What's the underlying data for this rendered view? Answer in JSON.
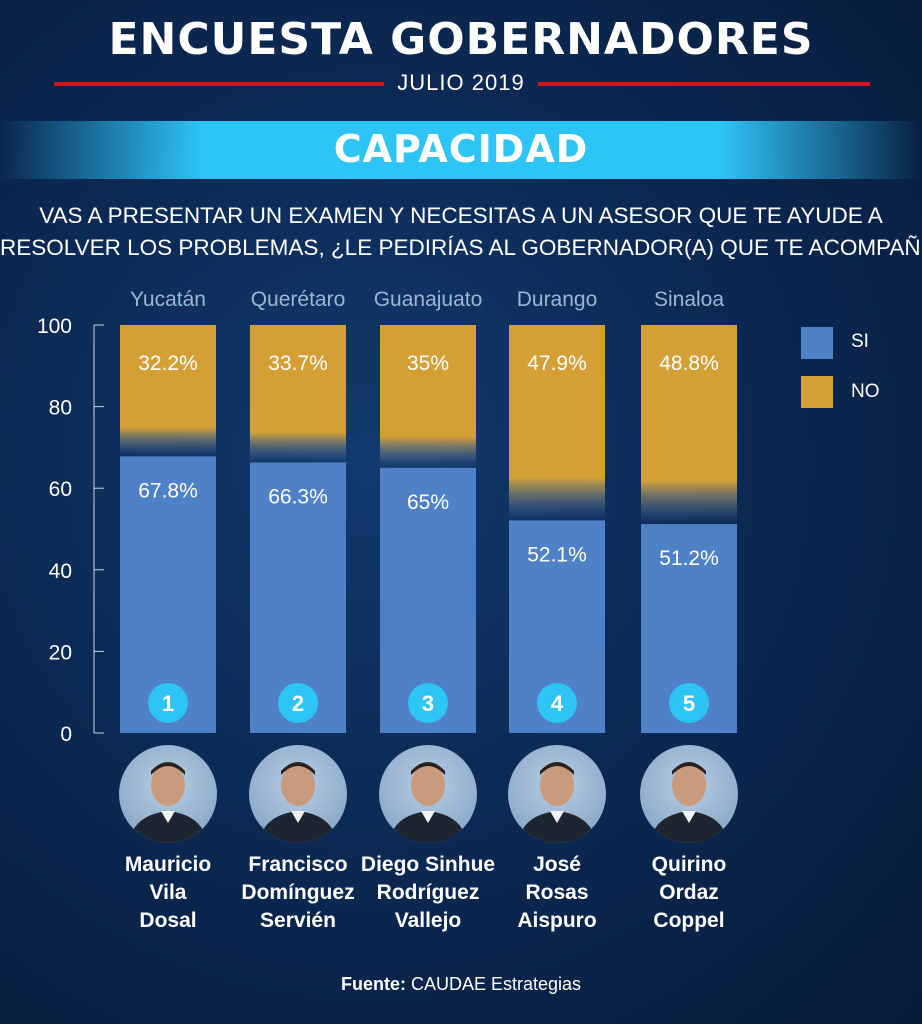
{
  "header": {
    "title": "ENCUESTA GOBERNADORES",
    "date": "JULIO 2019",
    "section": "CAPACIDAD",
    "question_line1": "VAS A PRESENTAR UN EXAMEN Y NECESITAS A UN ASESOR QUE TE AYUDE A",
    "question_line2": "RESOLVER LOS PROBLEMAS, ¿LE PEDIRÍAS AL GOBERNADOR(A) QUE TE ACOMPAÑE?"
  },
  "chart_data": {
    "type": "bar",
    "stacked": true,
    "categories": [
      "Yucatán",
      "Querétaro",
      "Guanajuato",
      "Durango",
      "Sinaloa"
    ],
    "series": [
      {
        "name": "SI",
        "values": [
          67.8,
          66.3,
          65,
          52.1,
          51.2
        ],
        "labels": [
          "67.8%",
          "66.3%",
          "65%",
          "52.1%",
          "51.2%"
        ],
        "color": "#4f81c7"
      },
      {
        "name": "NO",
        "values": [
          32.2,
          33.7,
          35,
          47.9,
          48.8
        ],
        "labels": [
          "32.2%",
          "33.7%",
          "35%",
          "47.9%",
          "48.8%"
        ],
        "color": "#d4a036"
      }
    ],
    "ranks": [
      "1",
      "2",
      "3",
      "4",
      "5"
    ],
    "y_ticks": [
      "0",
      "20",
      "40",
      "60",
      "80",
      "100"
    ],
    "ylim": [
      0,
      100
    ],
    "legend_position": "top-right"
  },
  "governors": [
    {
      "line1": "Mauricio",
      "line2": "Vila",
      "line3": "Dosal"
    },
    {
      "line1": "Francisco",
      "line2": "Domínguez",
      "line3": "Servién"
    },
    {
      "line1": "Diego Sinhue",
      "line2": "Rodríguez",
      "line3": "Vallejo"
    },
    {
      "line1": "José",
      "line2": "Rosas",
      "line3": "Aispuro"
    },
    {
      "line1": "Quirino",
      "line2": "Ordaz",
      "line3": "Coppel"
    }
  ],
  "icons": {
    "portrait": "person-portrait-icon"
  },
  "footer": {
    "source_label": "Fuente:",
    "source_value": "CAUDAE Estrategias"
  }
}
